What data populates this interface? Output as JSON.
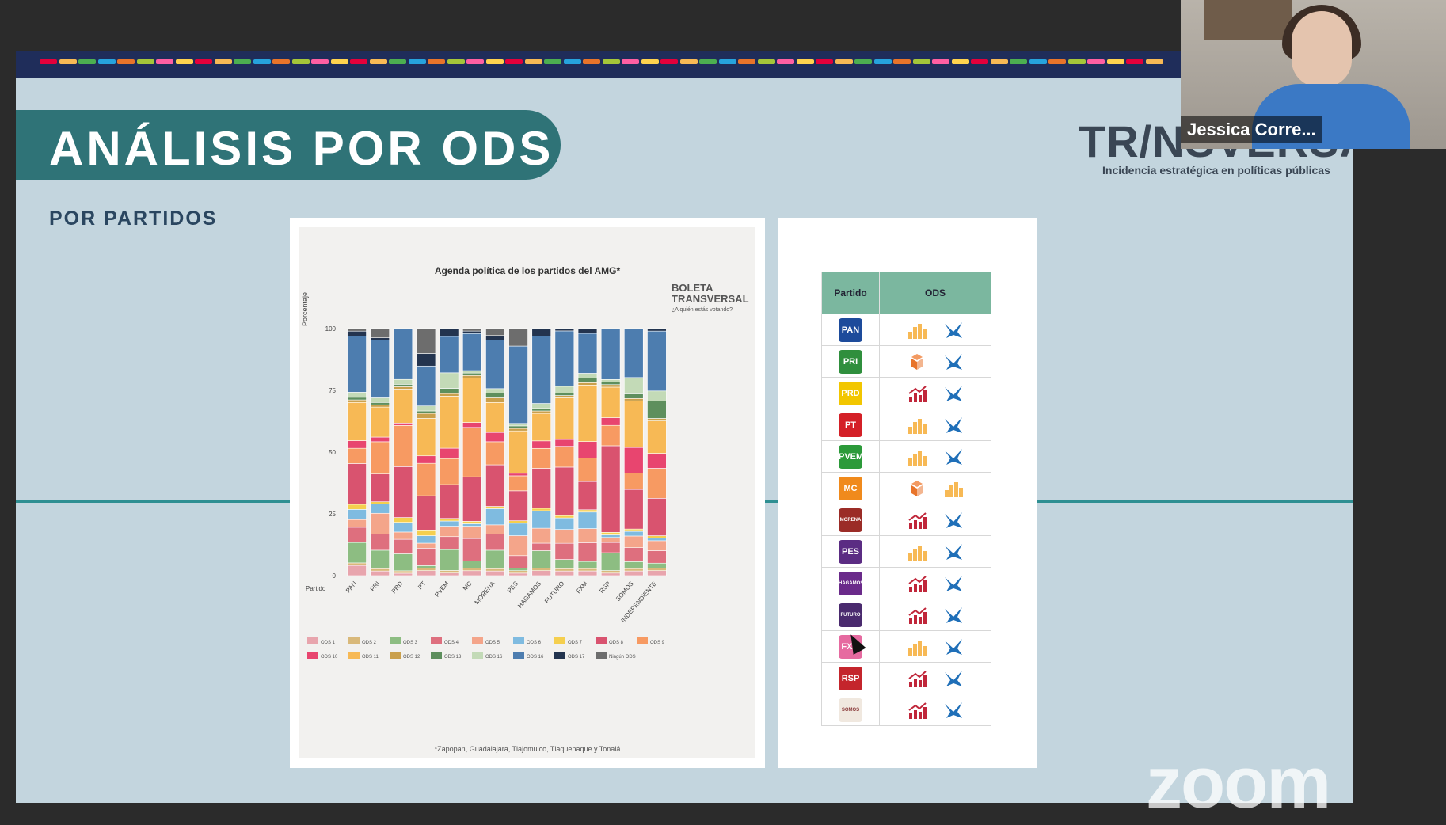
{
  "slide": {
    "title": "ANÁLISIS POR ODS",
    "subtitle": "POR PARTIDOS",
    "brand_name": "TR/NSVERSAL",
    "brand_tagline": "Incidencia estratégica en políticas públicas"
  },
  "chart_data": {
    "type": "bar",
    "title": "Agenda política de los partidos del AMG*",
    "xlabel": "Partido",
    "ylabel": "Porcentaje",
    "ylim": [
      0,
      100
    ],
    "yticks": [
      "0",
      "25",
      "50",
      "75",
      "100"
    ],
    "categories": [
      "PAN",
      "PRI",
      "PRD",
      "PT",
      "PVEM",
      "MC",
      "MORENA",
      "PES",
      "HAGAMOS",
      "FUTURO",
      "FXM",
      "RSP",
      "SOMOS",
      "INDEPENDIENTE"
    ],
    "logo_text": "BOLETA TRANSVERSAL",
    "logo_subtext": "¿A quién estás votando?",
    "footnote": "*Zapopan, Guadalajara, Tlajomulco, Tlaquepaque y Tonalá",
    "series": [
      {
        "name": "ODS 1",
        "color": "#e8a5ad",
        "values": [
          4,
          2,
          1,
          2,
          1,
          2,
          2,
          1,
          2,
          2,
          2,
          1,
          2,
          2
        ]
      },
      {
        "name": "ODS 2",
        "color": "#d9b97a",
        "values": [
          1,
          1,
          1,
          1,
          1,
          1,
          1,
          1,
          1,
          1,
          1,
          1,
          1,
          1
        ]
      },
      {
        "name": "ODS 3",
        "color": "#8dbd82",
        "values": [
          8,
          8,
          7,
          1,
          8,
          3,
          8,
          1,
          7,
          4,
          3,
          7,
          3,
          2
        ]
      },
      {
        "name": "ODS 4",
        "color": "#de6f7e",
        "values": [
          6,
          7,
          6,
          7,
          5,
          9,
          7,
          5,
          3,
          7,
          8,
          4,
          6,
          5
        ]
      },
      {
        "name": "ODS 5",
        "color": "#f4a58a",
        "values": [
          3,
          9,
          3,
          2,
          4,
          5,
          4,
          8,
          6,
          6,
          6,
          2,
          5,
          4
        ]
      },
      {
        "name": "ODS 6",
        "color": "#7fbbe0",
        "values": [
          4,
          4,
          4,
          3,
          2,
          1,
          7,
          5,
          7,
          5,
          7,
          1,
          2,
          1
        ]
      },
      {
        "name": "ODS 7",
        "color": "#f5cf4e",
        "values": [
          2,
          1,
          2,
          2,
          1,
          1,
          1,
          1,
          1,
          1,
          1,
          1,
          1,
          1
        ]
      },
      {
        "name": "ODS 8",
        "color": "#d9536f",
        "values": [
          16,
          12,
          21,
          14,
          13,
          18,
          18,
          12,
          16,
          21,
          12,
          34,
          17,
          15
        ]
      },
      {
        "name": "ODS 9",
        "color": "#f79a62",
        "values": [
          6,
          14,
          17,
          13,
          10,
          20,
          10,
          6,
          8,
          9,
          10,
          8,
          7,
          12
        ]
      },
      {
        "name": "ODS 10",
        "color": "#e8456f",
        "values": [
          3,
          2,
          1,
          3,
          4,
          2,
          4,
          1,
          3,
          3,
          7,
          3,
          11,
          6
        ]
      },
      {
        "name": "ODS 11",
        "color": "#f7b955",
        "values": [
          15,
          13,
          14,
          15,
          20,
          18,
          13,
          17,
          11,
          18,
          24,
          12,
          20,
          13
        ]
      },
      {
        "name": "ODS 12",
        "color": "#caa04c",
        "values": [
          1,
          1,
          1,
          2,
          1,
          1,
          2,
          1,
          1,
          1,
          1,
          1,
          1,
          1
        ]
      },
      {
        "name": "ODS 13",
        "color": "#5e8f5d",
        "values": [
          1,
          1,
          1,
          1,
          2,
          1,
          2,
          1,
          1,
          1,
          2,
          1,
          2,
          7
        ]
      },
      {
        "name": "ODS 16",
        "color": "#c3dab7",
        "values": [
          2,
          2,
          2,
          2,
          6,
          1,
          2,
          1,
          2,
          3,
          2,
          1,
          7,
          4
        ]
      },
      {
        "name": "ODS 16",
        "color": "#4d7daf",
        "values": [
          22,
          25,
          21,
          16,
          14,
          15,
          21,
          31,
          27,
          24,
          17,
          20,
          21,
          24
        ]
      },
      {
        "name": "ODS 17",
        "color": "#23344f",
        "values": [
          2,
          1,
          0,
          5,
          3,
          1,
          2,
          0,
          3,
          1,
          2,
          0,
          0,
          1
        ]
      },
      {
        "name": "Ningún ODS",
        "color": "#6d6d6d",
        "values": [
          1,
          4,
          0,
          10,
          0,
          1,
          3,
          7,
          0,
          0,
          0,
          0,
          0,
          0
        ]
      }
    ]
  },
  "table": {
    "col_party": "Partido",
    "col_ods": "ODS",
    "rows": [
      {
        "party": "PAN",
        "color": "#1d4b9b",
        "icons": [
          "bars-icon",
          "dove-icon"
        ]
      },
      {
        "party": "PRI",
        "color": "#2f8f3d",
        "icons": [
          "cubes-icon",
          "dove-icon"
        ]
      },
      {
        "party": "PRD",
        "color": "#f2c600",
        "icons": [
          "growth-icon",
          "dove-icon"
        ]
      },
      {
        "party": "PT",
        "color": "#d42027",
        "icons": [
          "bars-icon",
          "dove-icon"
        ]
      },
      {
        "party": "PVEM",
        "color": "#2c9a3a",
        "icons": [
          "bars-icon",
          "dove-icon"
        ]
      },
      {
        "party": "MC",
        "color": "#f08a1c",
        "icons": [
          "cubes-icon",
          "bars-icon"
        ]
      },
      {
        "party": "MORENA",
        "color": "#9b2c27",
        "icons": [
          "growth-icon",
          "dove-icon"
        ]
      },
      {
        "party": "PES",
        "color": "#5b2c83",
        "icons": [
          "bars-icon",
          "dove-icon"
        ]
      },
      {
        "party": "HAGAMOS",
        "color": "#6a2a8a",
        "icons": [
          "growth-icon",
          "dove-icon"
        ]
      },
      {
        "party": "FUTURO",
        "color": "#4a2a6e",
        "icons": [
          "growth-icon",
          "dove-icon"
        ]
      },
      {
        "party": "FXM",
        "color": "#e66aa0",
        "icons": [
          "bars-icon",
          "dove-icon"
        ]
      },
      {
        "party": "RSP",
        "color": "#c4252c",
        "icons": [
          "growth-icon",
          "dove-icon"
        ]
      },
      {
        "party": "SOMOS",
        "color": "#f0e8df",
        "icons": [
          "growth-icon",
          "dove-icon"
        ]
      }
    ]
  },
  "participant": {
    "name": "Jessica Corre..."
  },
  "app": {
    "watermark": "zoom"
  }
}
